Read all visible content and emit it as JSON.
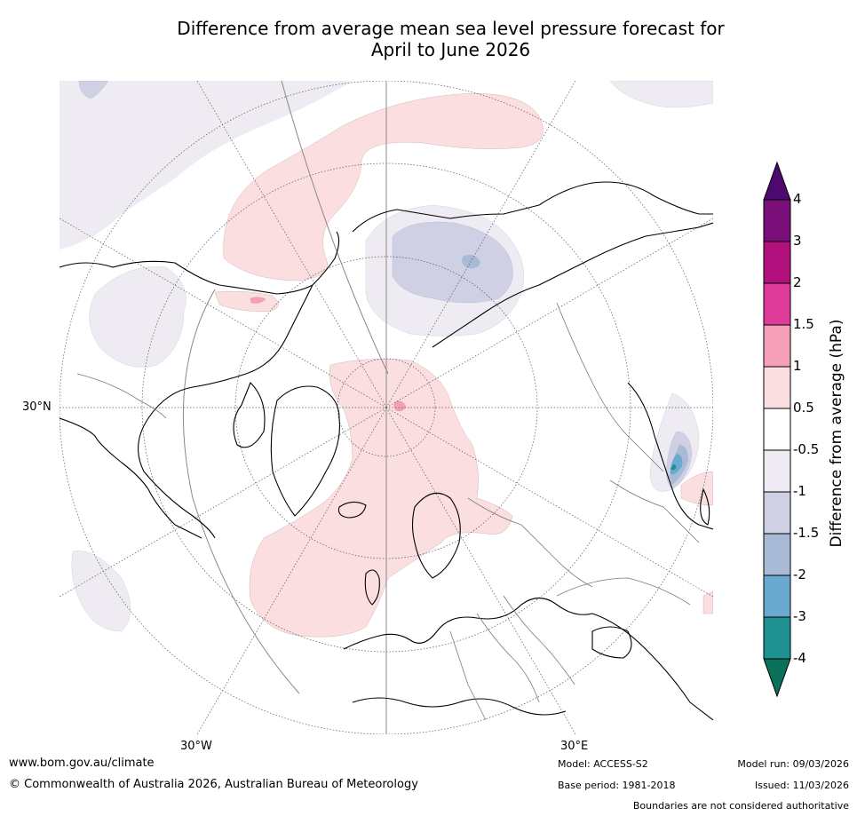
{
  "title": {
    "line1": "Difference from average mean sea level pressure forecast for",
    "line2": "April to June 2026"
  },
  "map": {
    "projection": "north-polar-stereographic",
    "region": "Northern Hemisphere",
    "labels": {
      "lat_30n": "30°N",
      "lon_30w": "30°W",
      "lon_30e": "30°E"
    }
  },
  "colorbar": {
    "title": "Difference from average (hPa)",
    "ticks": [
      "4",
      "3",
      "2",
      "1.5",
      "1",
      "0.5",
      "-0.5",
      "-1",
      "-1.5",
      "-2",
      "-3",
      "-4"
    ],
    "bins": [
      {
        "range": "above 4",
        "color": "#4b0a6e"
      },
      {
        "range": "3 to 4",
        "color": "#7a0f7a"
      },
      {
        "range": "2 to 3",
        "color": "#b2107c"
      },
      {
        "range": "1.5 to 2",
        "color": "#dd3a9a"
      },
      {
        "range": "1 to 1.5",
        "color": "#f5a0b8"
      },
      {
        "range": "0.5 to 1",
        "color": "#fbdfe0"
      },
      {
        "range": "-0.5 to 0.5",
        "color": "#ffffff"
      },
      {
        "range": "-1 to -0.5",
        "color": "#eeebf2"
      },
      {
        "range": "-1.5 to -1",
        "color": "#cfd0e4"
      },
      {
        "range": "-2 to -1.5",
        "color": "#a8bad6"
      },
      {
        "range": "-3 to -2",
        "color": "#6aaad0"
      },
      {
        "range": "-4 to -3",
        "color": "#1f9191"
      },
      {
        "range": "below -4",
        "color": "#09705a"
      }
    ]
  },
  "footer": {
    "website": "www.bom.gov.au/climate",
    "copyright": "© Commonwealth of Australia 2026, Australian Bureau of Meteorology",
    "model": "Model: ACCESS-S2",
    "base_period": "Base period: 1981-2018",
    "model_run": "Model run: 09/03/2026",
    "issued": "Issued: 11/03/2026",
    "disclaimer": "Boundaries are not considered authoritative"
  }
}
